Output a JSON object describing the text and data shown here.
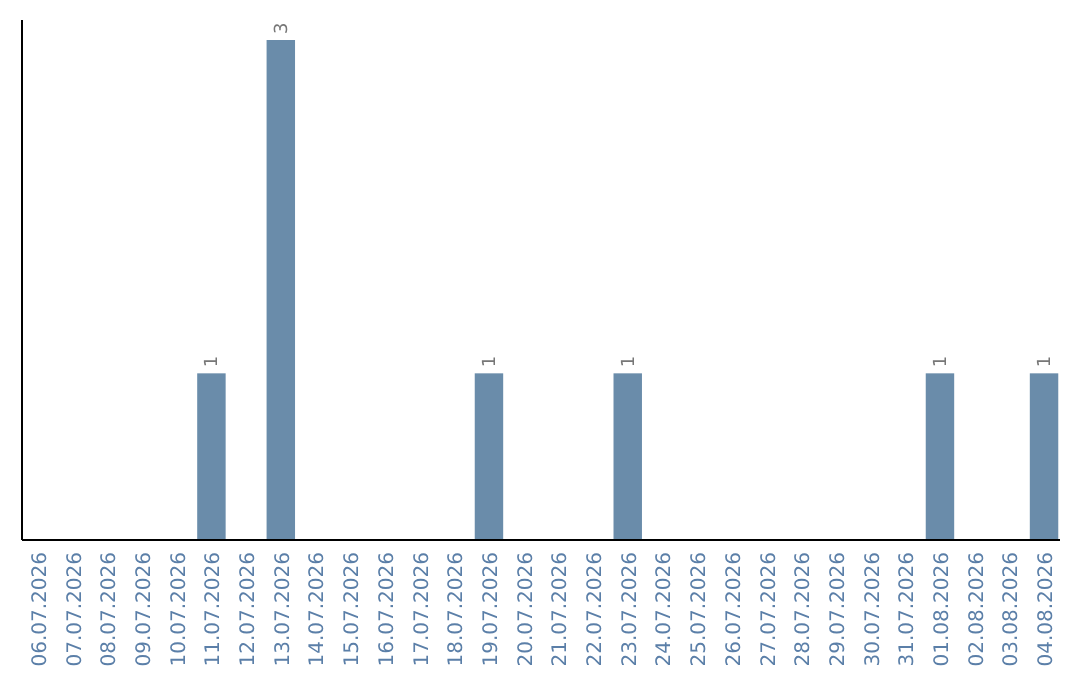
{
  "chart_data": {
    "type": "bar",
    "categories": [
      "06.07.2026",
      "07.07.2026",
      "08.07.2026",
      "09.07.2026",
      "10.07.2026",
      "11.07.2026",
      "12.07.2026",
      "13.07.2026",
      "14.07.2026",
      "15.07.2026",
      "16.07.2026",
      "17.07.2026",
      "18.07.2026",
      "19.07.2026",
      "20.07.2026",
      "21.07.2026",
      "22.07.2026",
      "23.07.2026",
      "24.07.2026",
      "25.07.2026",
      "26.07.2026",
      "27.07.2026",
      "28.07.2026",
      "29.07.2026",
      "30.07.2026",
      "31.07.2026",
      "01.08.2026",
      "02.08.2026",
      "03.08.2026",
      "04.08.2026"
    ],
    "values": [
      0,
      0,
      0,
      0,
      0,
      1,
      0,
      3,
      0,
      0,
      0,
      0,
      0,
      1,
      0,
      0,
      0,
      1,
      0,
      0,
      0,
      0,
      0,
      0,
      0,
      0,
      1,
      0,
      0,
      1
    ],
    "value_labels": [
      null,
      null,
      null,
      null,
      null,
      "1",
      null,
      "3",
      null,
      null,
      null,
      null,
      null,
      "1",
      null,
      null,
      null,
      "1",
      null,
      null,
      null,
      null,
      null,
      null,
      null,
      null,
      "1",
      null,
      null,
      "1"
    ],
    "color": "#6a8caa"
  }
}
